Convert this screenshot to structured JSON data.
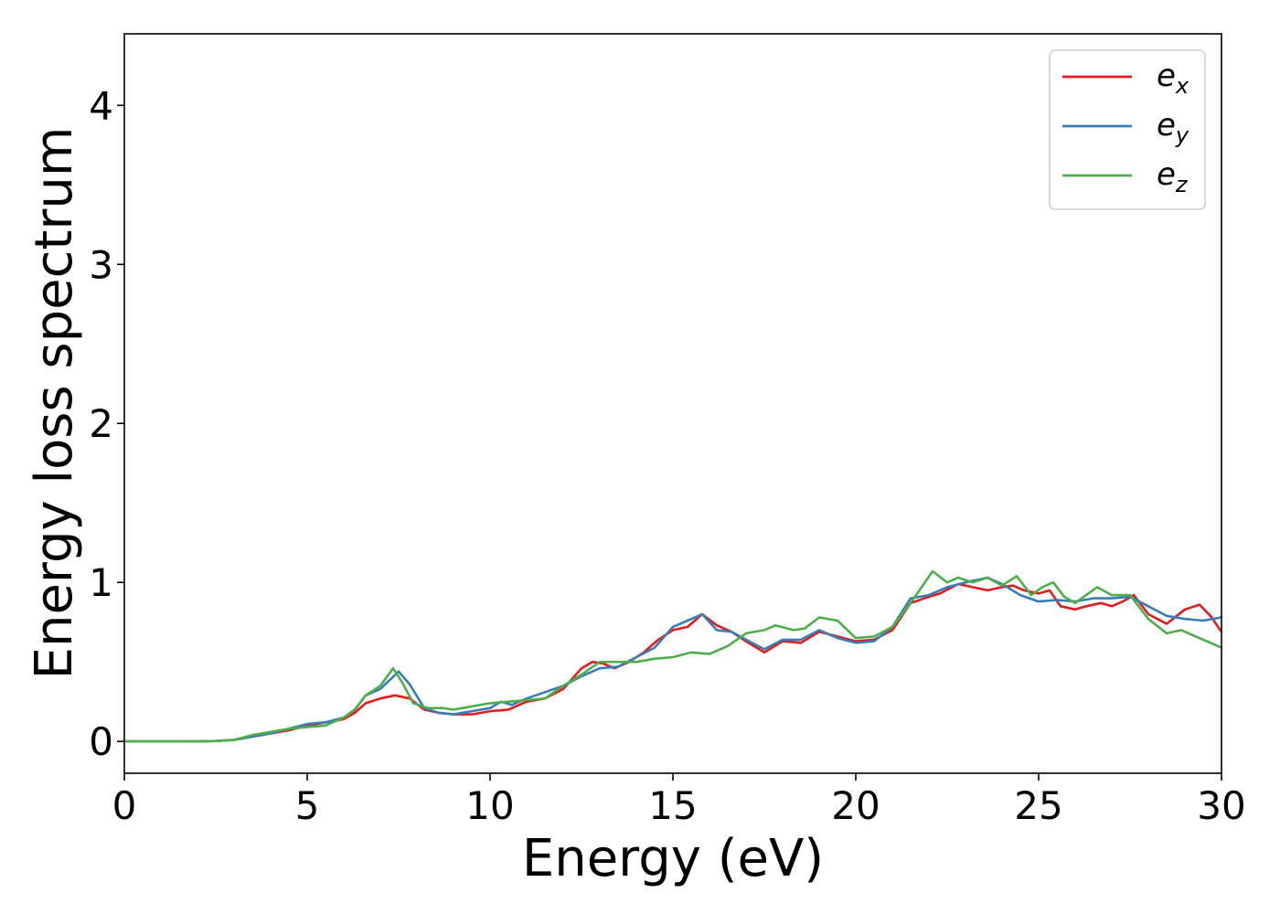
{
  "chart_data": {
    "type": "line",
    "xlabel": "Energy (eV)",
    "ylabel": "Energy loss spectrum",
    "xlim": [
      0,
      30
    ],
    "ylim": [
      -0.2,
      4.45
    ],
    "xticks": [
      0,
      5,
      10,
      15,
      20,
      25,
      30
    ],
    "yticks": [
      0,
      1,
      2,
      3,
      4
    ],
    "grid": false,
    "legend_position": "top-right",
    "series": [
      {
        "name": "e_x",
        "legend_base": "e",
        "legend_sub": "x",
        "color": "#e41a1c",
        "x": [
          0,
          1,
          2,
          2.5,
          3.0,
          3.5,
          4.0,
          4.5,
          5.0,
          5.5,
          6.0,
          6.3,
          6.6,
          7.0,
          7.4,
          7.8,
          8.2,
          8.6,
          9.0,
          9.5,
          10.0,
          10.5,
          11.0,
          11.5,
          12.0,
          12.5,
          12.8,
          13.1,
          13.4,
          13.8,
          14.2,
          14.6,
          15.0,
          15.4,
          15.8,
          16.2,
          16.6,
          17.0,
          17.5,
          18.0,
          18.5,
          19.0,
          19.5,
          20.0,
          20.5,
          21.0,
          21.5,
          22.0,
          22.3,
          22.8,
          23.2,
          23.6,
          24.0,
          24.3,
          24.6,
          25.0,
          25.3,
          25.6,
          26.0,
          26.3,
          26.7,
          27.0,
          27.3,
          27.6,
          28.0,
          28.5,
          29.0,
          29.4,
          29.7,
          30.0
        ],
        "y": [
          0,
          0,
          0,
          0.003,
          0.01,
          0.03,
          0.05,
          0.07,
          0.1,
          0.12,
          0.14,
          0.18,
          0.24,
          0.27,
          0.29,
          0.27,
          0.2,
          0.18,
          0.17,
          0.17,
          0.19,
          0.2,
          0.25,
          0.27,
          0.33,
          0.46,
          0.5,
          0.49,
          0.46,
          0.5,
          0.56,
          0.64,
          0.7,
          0.72,
          0.8,
          0.73,
          0.69,
          0.63,
          0.56,
          0.63,
          0.62,
          0.69,
          0.66,
          0.63,
          0.64,
          0.7,
          0.87,
          0.91,
          0.93,
          0.99,
          0.97,
          0.95,
          0.97,
          0.98,
          0.95,
          0.93,
          0.95,
          0.85,
          0.83,
          0.85,
          0.87,
          0.85,
          0.88,
          0.92,
          0.8,
          0.74,
          0.83,
          0.86,
          0.79,
          0.69
        ]
      },
      {
        "name": "e_y",
        "legend_base": "e",
        "legend_sub": "y",
        "color": "#377eb8",
        "x": [
          0,
          1,
          2,
          2.5,
          3.0,
          3.5,
          4.0,
          4.5,
          5.0,
          5.5,
          6.0,
          6.3,
          6.6,
          7.0,
          7.5,
          7.8,
          8.2,
          8.6,
          9.0,
          9.5,
          10.0,
          10.3,
          10.6,
          11.0,
          11.5,
          12.0,
          12.5,
          13.0,
          13.5,
          14.0,
          14.5,
          15.0,
          15.4,
          15.8,
          16.2,
          16.6,
          17.0,
          17.5,
          18.0,
          18.5,
          19.0,
          19.5,
          20.0,
          20.5,
          21.0,
          21.5,
          22.0,
          22.5,
          23.0,
          23.6,
          24.0,
          24.5,
          25.0,
          25.5,
          26.0,
          26.5,
          27.0,
          27.5,
          28.0,
          28.5,
          29.0,
          29.5,
          30.0
        ],
        "y": [
          0,
          0,
          0,
          0.003,
          0.01,
          0.03,
          0.05,
          0.08,
          0.11,
          0.12,
          0.15,
          0.2,
          0.29,
          0.33,
          0.44,
          0.36,
          0.21,
          0.18,
          0.17,
          0.19,
          0.21,
          0.25,
          0.23,
          0.27,
          0.31,
          0.35,
          0.41,
          0.46,
          0.47,
          0.53,
          0.59,
          0.72,
          0.76,
          0.8,
          0.7,
          0.69,
          0.64,
          0.58,
          0.64,
          0.64,
          0.7,
          0.65,
          0.62,
          0.63,
          0.72,
          0.9,
          0.92,
          0.97,
          1.0,
          1.03,
          0.99,
          0.92,
          0.88,
          0.89,
          0.88,
          0.9,
          0.9,
          0.91,
          0.85,
          0.79,
          0.77,
          0.76,
          0.78
        ]
      },
      {
        "name": "e_z",
        "legend_base": "e",
        "legend_sub": "z",
        "color": "#4daf4a",
        "x": [
          0,
          1,
          2,
          2.5,
          3.0,
          3.5,
          4.0,
          4.5,
          5.0,
          5.5,
          6.0,
          6.3,
          6.6,
          7.0,
          7.35,
          7.6,
          7.9,
          8.3,
          8.7,
          9.0,
          9.5,
          10.0,
          10.5,
          11.0,
          11.5,
          12.0,
          12.5,
          13.0,
          13.5,
          14.0,
          14.5,
          15.0,
          15.5,
          16.0,
          16.5,
          17.0,
          17.5,
          17.8,
          18.3,
          18.6,
          19.0,
          19.5,
          20.0,
          20.5,
          21.0,
          21.5,
          21.8,
          22.1,
          22.5,
          22.8,
          23.2,
          23.6,
          24.0,
          24.4,
          24.8,
          25.1,
          25.4,
          25.7,
          26.0,
          26.3,
          26.6,
          27.0,
          27.5,
          28.0,
          28.5,
          28.9,
          29.3,
          29.7,
          30.0
        ],
        "y": [
          0,
          0,
          0,
          0.003,
          0.01,
          0.04,
          0.06,
          0.08,
          0.09,
          0.1,
          0.15,
          0.2,
          0.29,
          0.35,
          0.46,
          0.37,
          0.24,
          0.21,
          0.21,
          0.2,
          0.22,
          0.24,
          0.25,
          0.26,
          0.27,
          0.35,
          0.42,
          0.5,
          0.5,
          0.5,
          0.52,
          0.53,
          0.56,
          0.55,
          0.6,
          0.68,
          0.7,
          0.73,
          0.7,
          0.71,
          0.78,
          0.76,
          0.65,
          0.66,
          0.72,
          0.87,
          0.97,
          1.07,
          1.0,
          1.03,
          1.0,
          1.03,
          0.98,
          1.04,
          0.92,
          0.97,
          1.0,
          0.91,
          0.87,
          0.92,
          0.97,
          0.92,
          0.92,
          0.77,
          0.68,
          0.7,
          0.66,
          0.62,
          0.59
        ]
      }
    ]
  }
}
